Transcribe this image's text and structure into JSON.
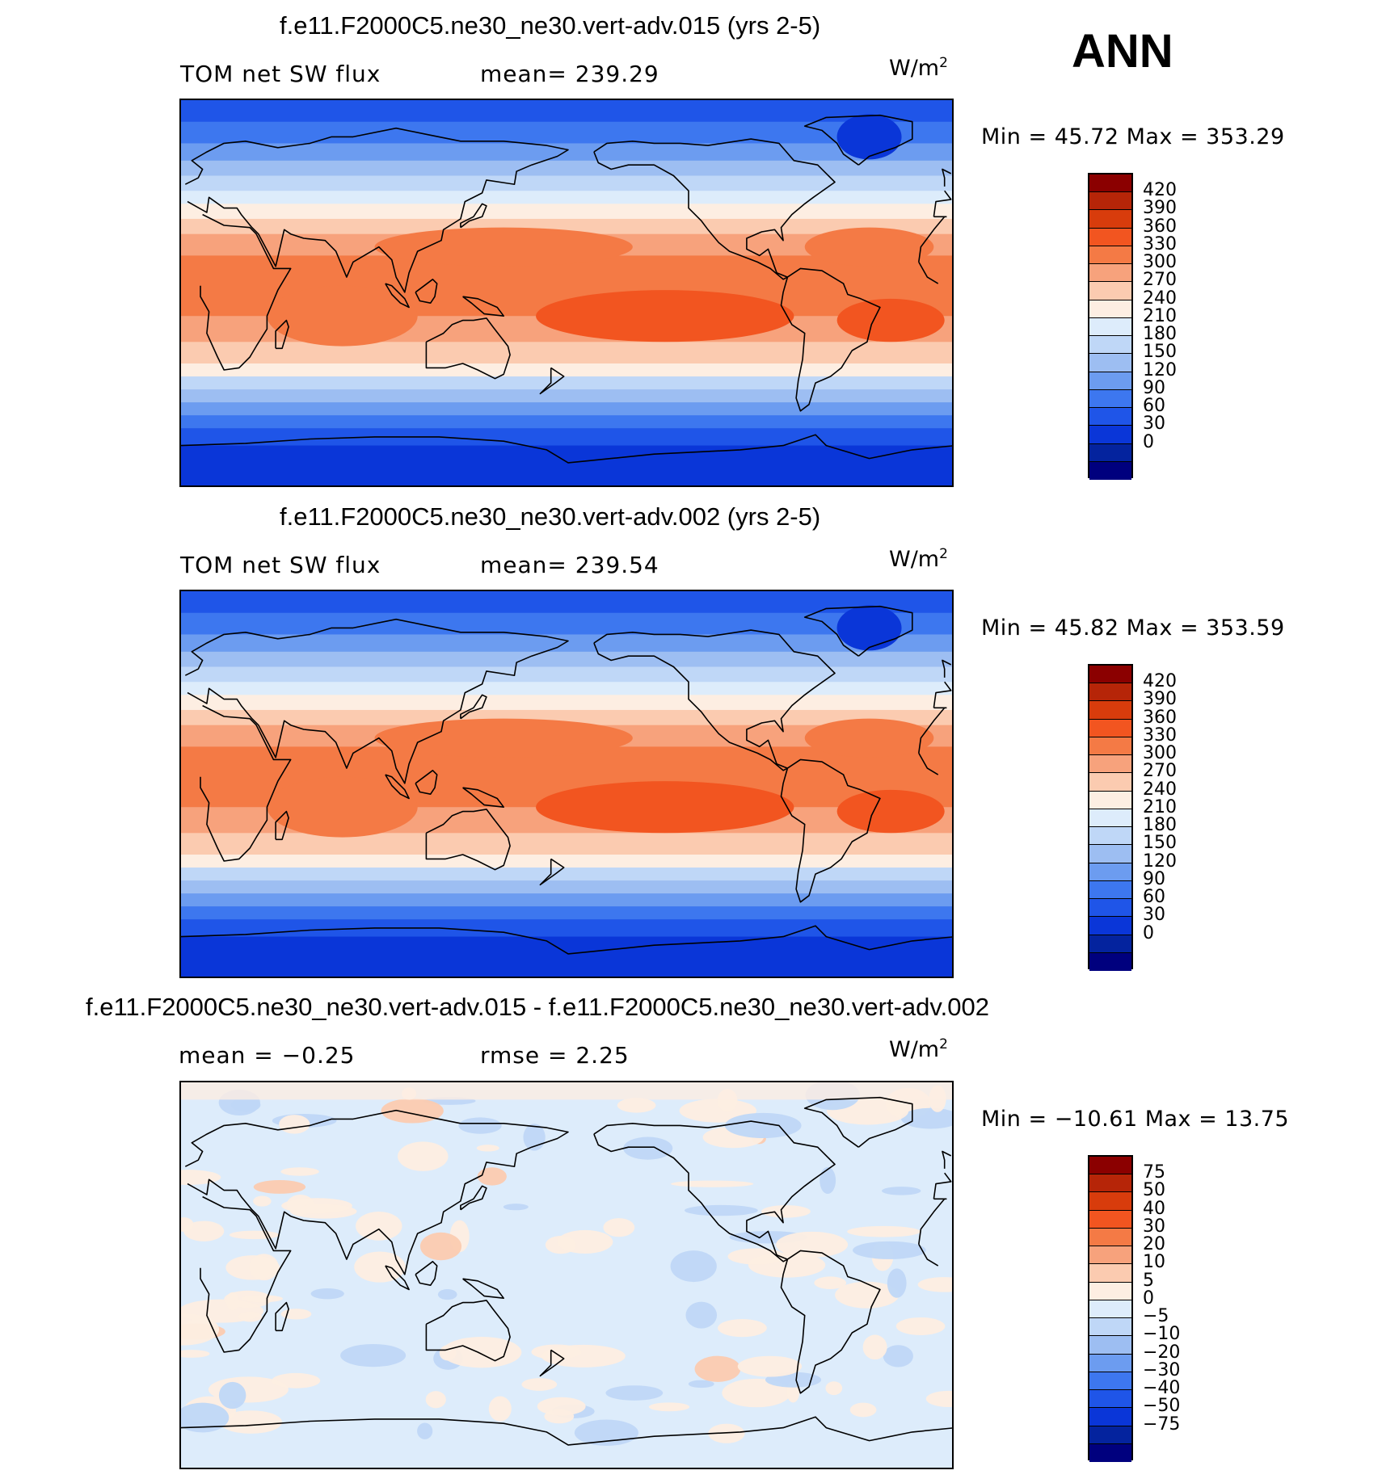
{
  "season": "ANN",
  "panels": [
    {
      "title": "f.e11.F2000C5.ne30_ne30.vert-adv.015 (yrs 2-5)",
      "left_label": "TOM net SW flux",
      "center_label": "mean= 239.29",
      "units": "W/m",
      "units_sup": "2",
      "minmax": "Min =   45.72  Max  =  353.29",
      "colorbar": {
        "colors": [
          "#8b0000",
          "#b62508",
          "#d83c0c",
          "#f25520",
          "#f47a45",
          "#f7a27c",
          "#fbcbb0",
          "#fdeee2",
          "#ddecfb",
          "#bfd7f7",
          "#9dbef2",
          "#6c9cf0",
          "#3d77ef",
          "#1f55e8",
          "#0a36d8",
          "#04239e",
          "#00007e"
        ],
        "labels": [
          "420",
          "390",
          "360",
          "330",
          "300",
          "270",
          "240",
          "210",
          "180",
          "150",
          "120",
          "90",
          "60",
          "30",
          "0"
        ]
      }
    },
    {
      "title": "f.e11.F2000C5.ne30_ne30.vert-adv.002 (yrs 2-5)",
      "left_label": "TOM net SW flux",
      "center_label": "mean= 239.54",
      "units": "W/m",
      "units_sup": "2",
      "minmax": "Min =   45.82  Max  =  353.59",
      "colorbar": {
        "colors": [
          "#8b0000",
          "#b62508",
          "#d83c0c",
          "#f25520",
          "#f47a45",
          "#f7a27c",
          "#fbcbb0",
          "#fdeee2",
          "#ddecfb",
          "#bfd7f7",
          "#9dbef2",
          "#6c9cf0",
          "#3d77ef",
          "#1f55e8",
          "#0a36d8",
          "#04239e",
          "#00007e"
        ],
        "labels": [
          "420",
          "390",
          "360",
          "330",
          "300",
          "270",
          "240",
          "210",
          "180",
          "150",
          "120",
          "90",
          "60",
          "30",
          "0"
        ]
      }
    },
    {
      "title": "f.e11.F2000C5.ne30_ne30.vert-adv.015 - f.e11.F2000C5.ne30_ne30.vert-adv.002",
      "left_label": "mean =   −0.25",
      "center_label": "rmse =    2.25",
      "units": "W/m",
      "units_sup": "2",
      "minmax": "Min = −10.61  Max  =   13.75",
      "colorbar": {
        "colors": [
          "#8b0000",
          "#b62508",
          "#d83c0c",
          "#f25520",
          "#f47a45",
          "#f7a27c",
          "#fbcbb0",
          "#fdeee2",
          "#ddecfb",
          "#bfd7f7",
          "#9dbef2",
          "#6c9cf0",
          "#3d77ef",
          "#1f55e8",
          "#0a36d8",
          "#04239e",
          "#00007e"
        ],
        "labels": [
          "75",
          "50",
          "40",
          "30",
          "20",
          "10",
          "5",
          "0",
          "−5",
          "−10",
          "−20",
          "−30",
          "−40",
          "−50",
          "−75"
        ]
      }
    }
  ]
}
